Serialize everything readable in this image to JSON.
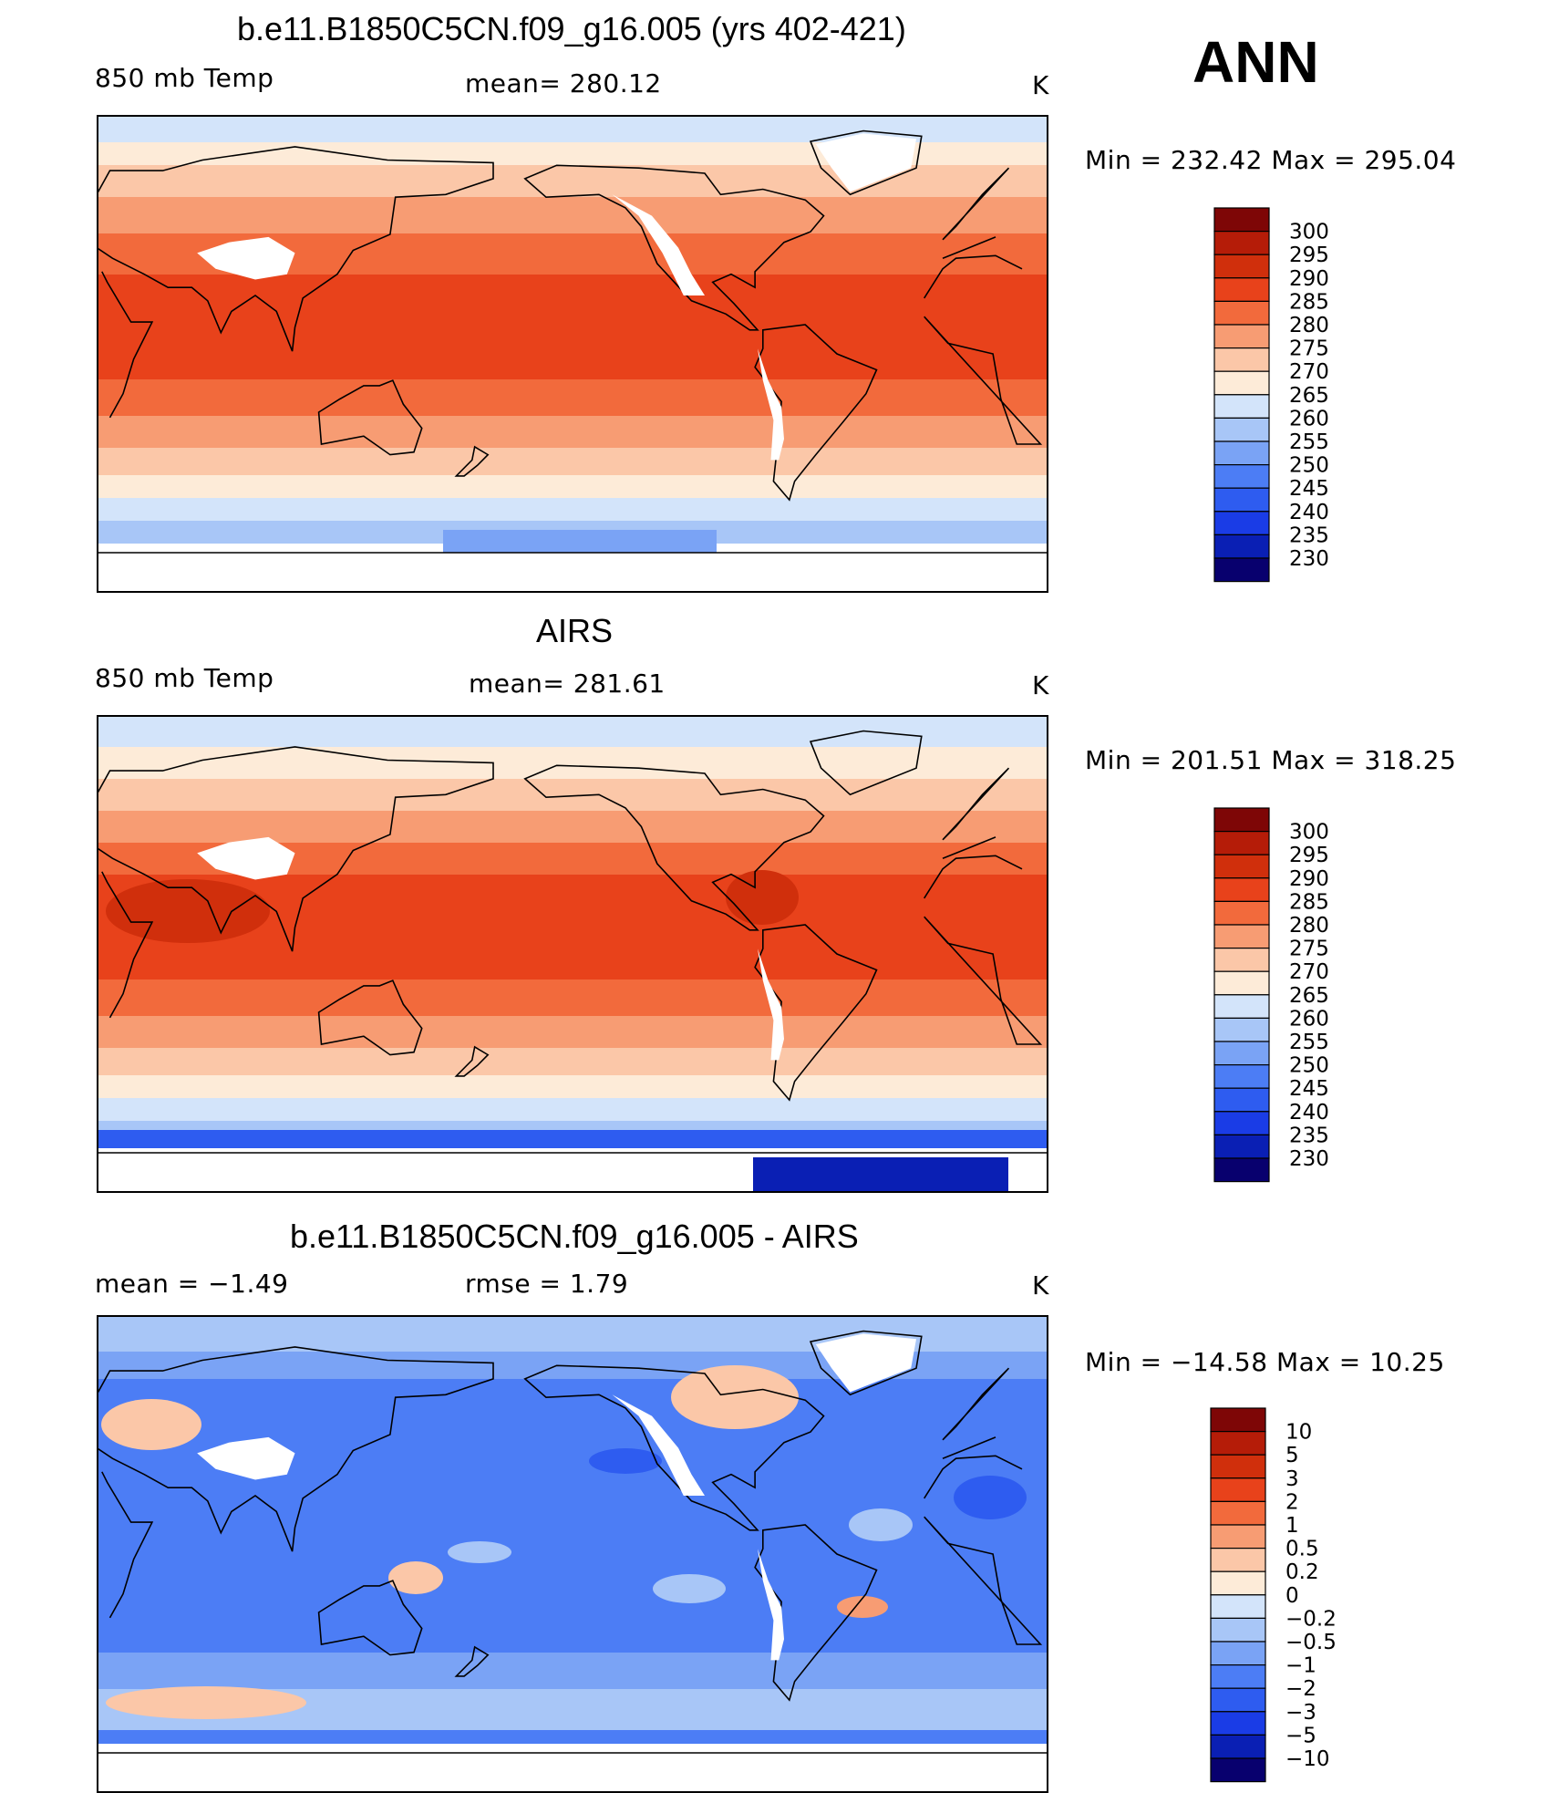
{
  "season": "ANN",
  "palettes": {
    "temp": [
      "#ffffff",
      "#08006e",
      "#0a1fb4",
      "#1a3ce6",
      "#2e5cf0",
      "#4c7df5",
      "#7aa3f5",
      "#a8c6f7",
      "#d3e4fa",
      "#fdebd8",
      "#fbc7a8",
      "#f79c73",
      "#f26a3c",
      "#e8421b",
      "#d02f0c",
      "#b51c08",
      "#7e0606"
    ],
    "diff": [
      "#ffffff",
      "#08006e",
      "#0a1fb4",
      "#1a3ce6",
      "#2e5cf0",
      "#4c7df5",
      "#7aa3f5",
      "#a8c6f7",
      "#d3e4fa",
      "#fdebd8",
      "#fbc7a8",
      "#f79c73",
      "#f26a3c",
      "#e8421b",
      "#d02f0c",
      "#b51c08",
      "#7e0606"
    ]
  },
  "chart_data": [
    {
      "type": "heatmap",
      "title": "b.e11.B1850C5CN.f09_g16.005 (yrs 402-421)",
      "left_label": "850 mb Temp",
      "center_label": "mean=  280.12",
      "units": "K",
      "min_max_label": "Min  =  232.42  Max  =  295.04",
      "min": 232.42,
      "max": 295.04,
      "mean": 280.12,
      "colorbar_palette": "temp",
      "colorbar_levels": [
        "300",
        "295",
        "290",
        "285",
        "280",
        "275",
        "270",
        "265",
        "260",
        "255",
        "250",
        "245",
        "240",
        "235",
        "230"
      ]
    },
    {
      "type": "heatmap",
      "title": "AIRS",
      "left_label": "850 mb Temp",
      "center_label": "mean=  281.61",
      "units": "K",
      "min_max_label": "Min  =  201.51  Max  =  318.25",
      "min": 201.51,
      "max": 318.25,
      "mean": 281.61,
      "colorbar_palette": "temp",
      "colorbar_levels": [
        "300",
        "295",
        "290",
        "285",
        "280",
        "275",
        "270",
        "265",
        "260",
        "255",
        "250",
        "245",
        "240",
        "235",
        "230"
      ]
    },
    {
      "type": "heatmap",
      "title": "b.e11.B1850C5CN.f09_g16.005 - AIRS",
      "left_label": "mean  =    −1.49",
      "center_label": "rmse  =     1.79",
      "units": "K",
      "min_max_label": "Min  =  −14.58  Max  =    10.25",
      "min": -14.58,
      "max": 10.25,
      "mean": -1.49,
      "rmse": 1.79,
      "colorbar_palette": "diff",
      "colorbar_levels": [
        "10",
        "5",
        "3",
        "2",
        "1",
        "0.5",
        "0.2",
        "0",
        "−0.2",
        "−0.5",
        "−1",
        "−2",
        "−3",
        "−5",
        "−10"
      ]
    }
  ]
}
